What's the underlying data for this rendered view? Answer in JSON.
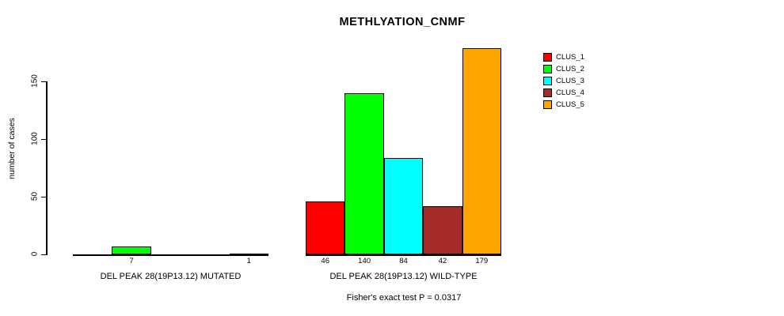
{
  "chart_data": {
    "type": "bar",
    "title": "METHLYATION_CNMF",
    "ylabel": "number of cases",
    "yticks": [
      0,
      50,
      100,
      150
    ],
    "ylim": [
      0,
      180
    ],
    "grid": false,
    "legend_position": "top-right",
    "clusters": [
      {
        "name": "CLUS_1",
        "color": "#FF0000"
      },
      {
        "name": "CLUS_2",
        "color": "#00FF00"
      },
      {
        "name": "CLUS_3",
        "color": "#00FFFF"
      },
      {
        "name": "CLUS_4",
        "color": "#A52A2A"
      },
      {
        "name": "CLUS_5",
        "color": "#FFA500"
      }
    ],
    "groups": [
      {
        "label": "DEL PEAK 28(19P13.12) MUTATED",
        "values": [
          0,
          7,
          0,
          0,
          1
        ]
      },
      {
        "label": "DEL PEAK 28(19P13.12) WILD-TYPE",
        "values": [
          46,
          140,
          84,
          42,
          179
        ]
      }
    ],
    "annotation": "Fisher's exact test P = 0.0317"
  }
}
